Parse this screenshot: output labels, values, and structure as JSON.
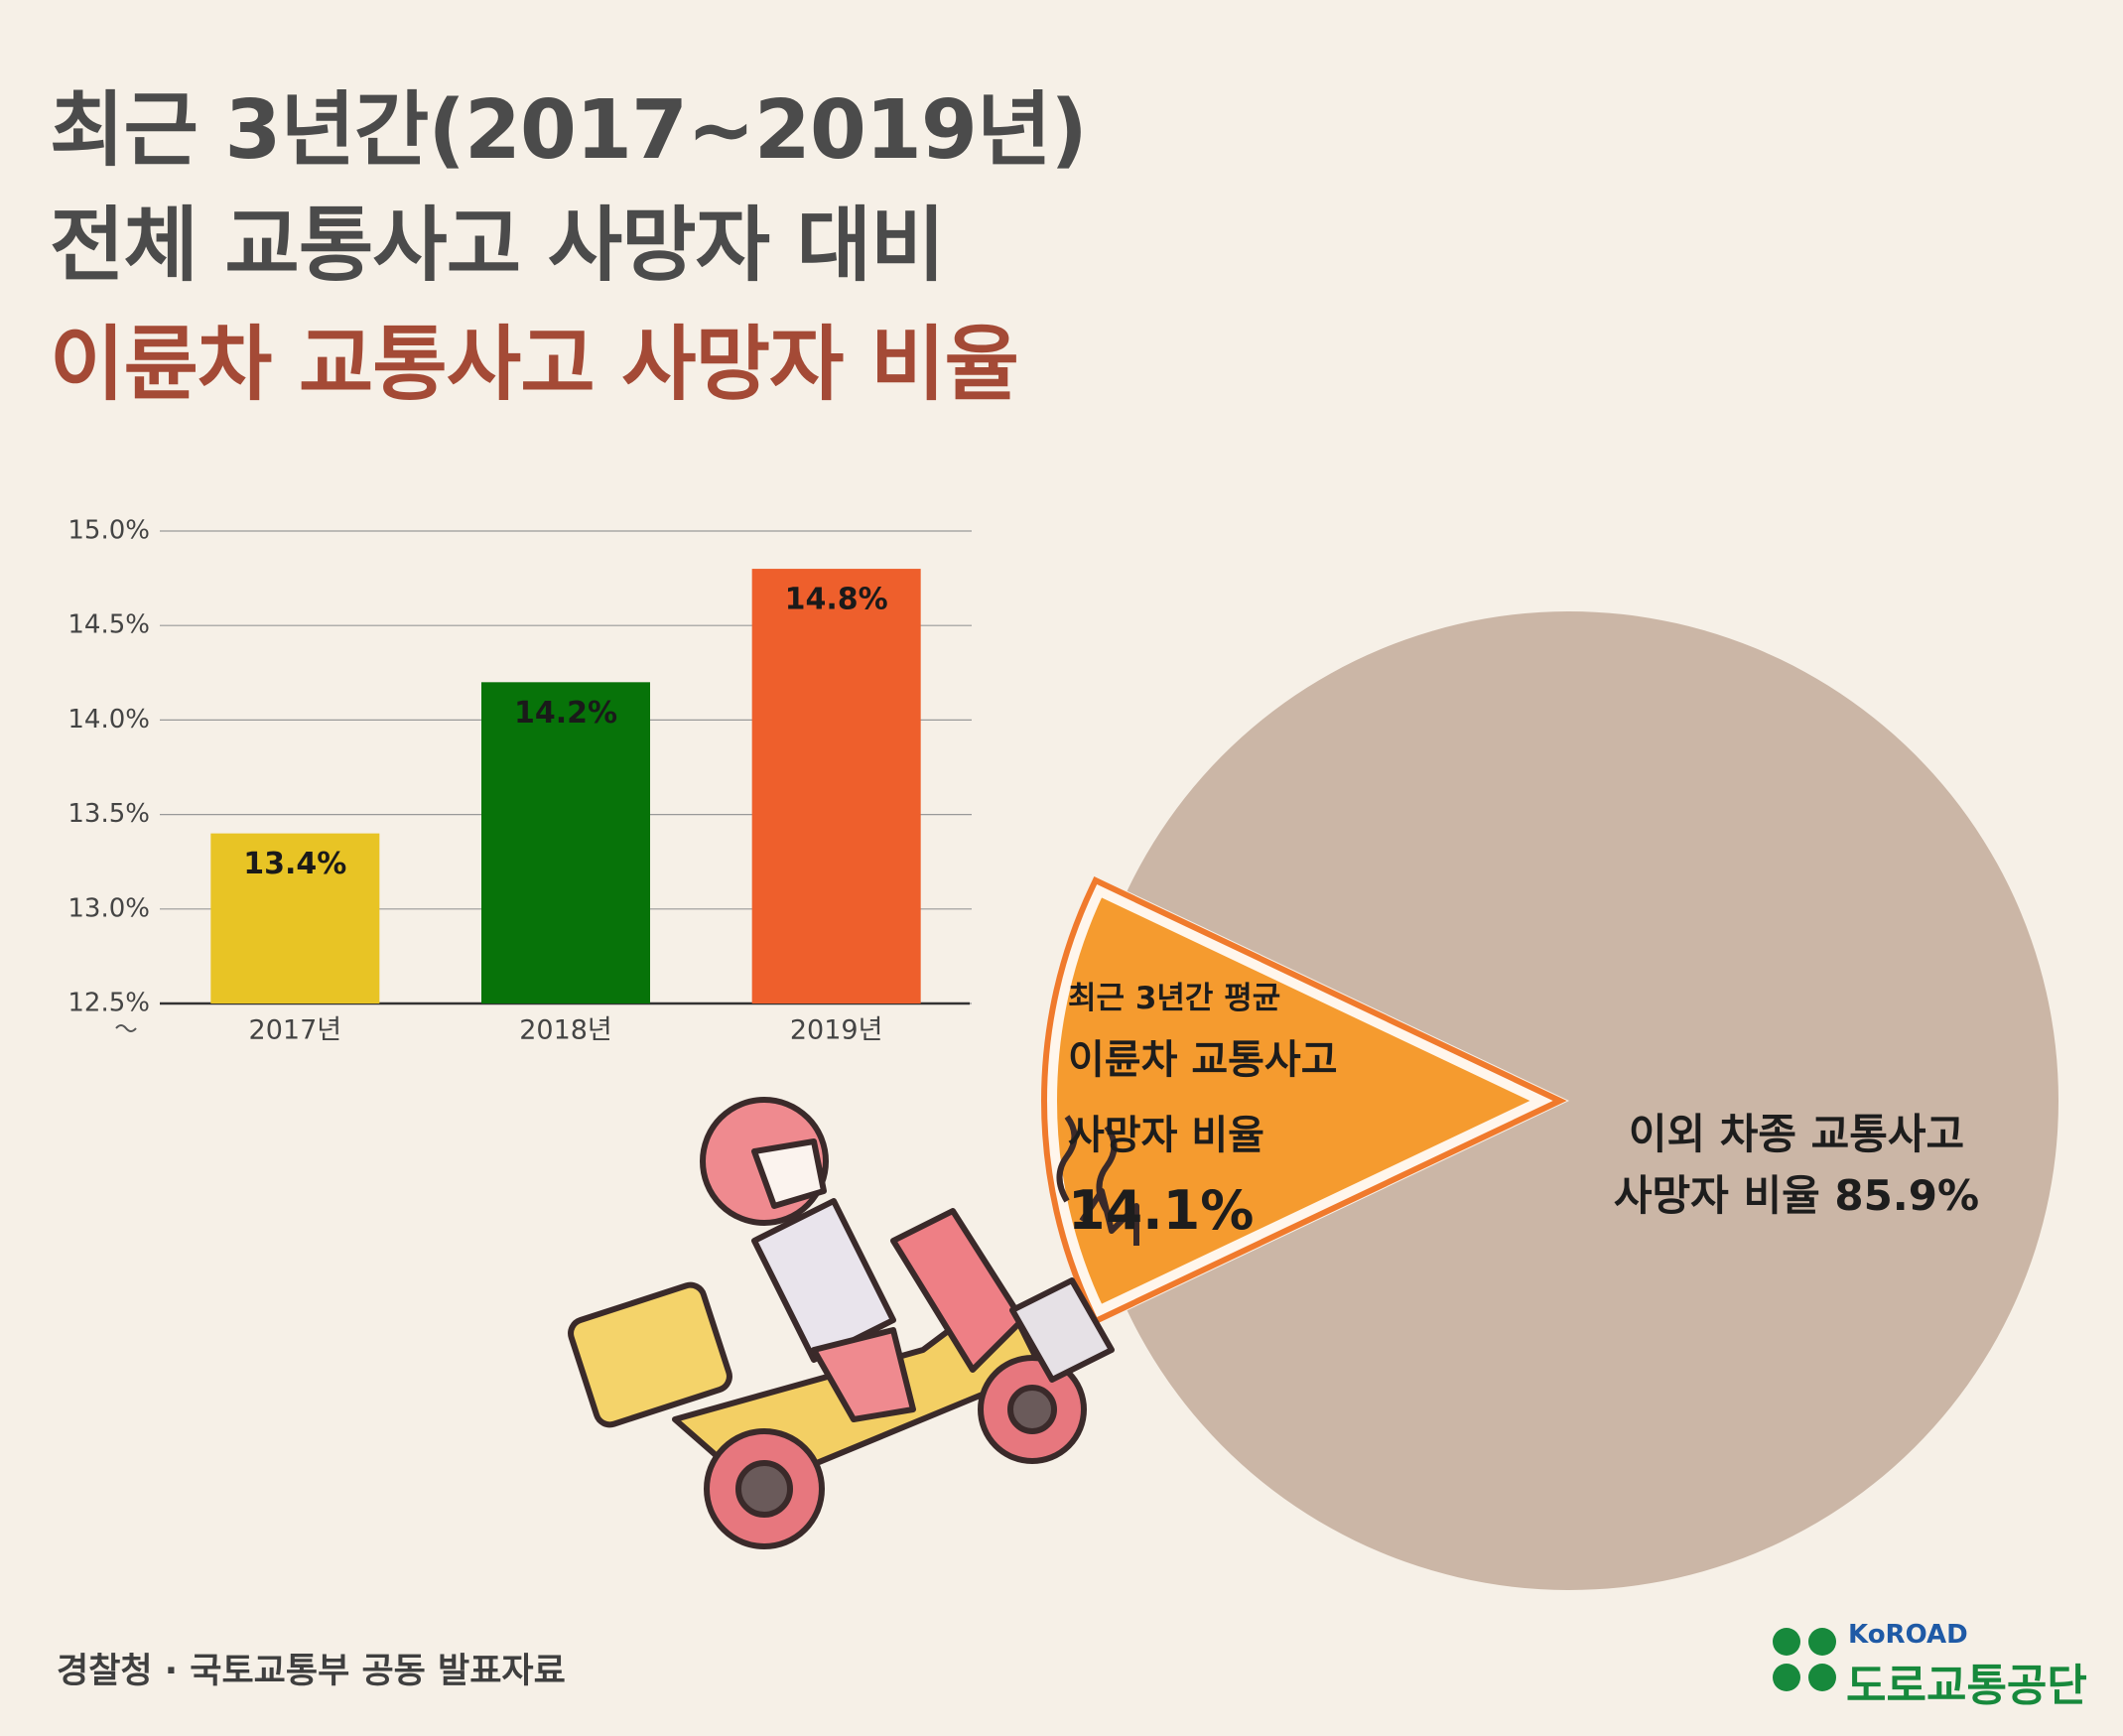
{
  "header": {
    "title_lines": [
      "최근 3년간(2017~2019년)",
      "전체 교통사고 사망자 대비",
      "이륜차 교통사고 사망자 비율"
    ]
  },
  "chart_data": [
    {
      "type": "bar",
      "categories": [
        "2017년",
        "2018년",
        "2019년"
      ],
      "values": [
        13.4,
        14.2,
        14.8
      ],
      "value_labels": [
        "13.4%",
        "14.2%",
        "14.8%"
      ],
      "colors": [
        "#e8c425",
        "#077309",
        "#ee5f2c"
      ],
      "ylim": [
        12.5,
        15.0
      ],
      "yticks": [
        {
          "value": 12.5,
          "label": "12.5%"
        },
        {
          "value": 13.0,
          "label": "13.0%"
        },
        {
          "value": 13.5,
          "label": "13.5%"
        },
        {
          "value": 14.0,
          "label": "14.0%"
        },
        {
          "value": 14.5,
          "label": "14.5%"
        },
        {
          "value": 15.0,
          "label": "15.0%"
        }
      ],
      "grid": true
    },
    {
      "type": "pie",
      "annotation": "최근 3년간 평균",
      "categories": [
        "이륜차 교통사고 사망자 비율",
        "이외 차종 교통사고 사망자 비율"
      ],
      "values": [
        14.1,
        85.9
      ],
      "value_labels": [
        "14.1%",
        "85.9%"
      ],
      "colors": [
        "#f59b2f",
        "#cbb6a6"
      ]
    }
  ],
  "footer": {
    "source": "경찰청 · 국토교통부 공동 발표자료",
    "logo_en": "KoROAD",
    "logo_ko": "도로교통공단"
  }
}
